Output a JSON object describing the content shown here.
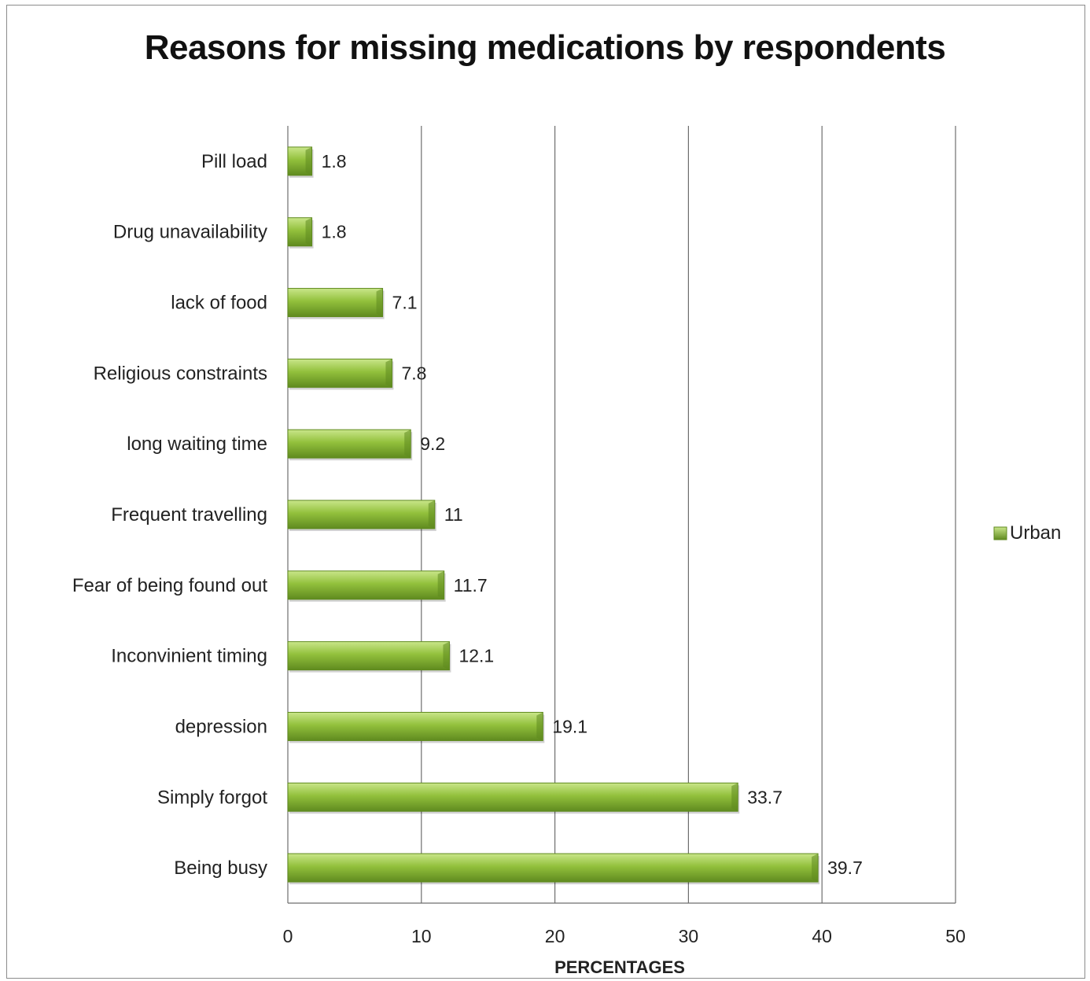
{
  "chart_data": {
    "type": "bar",
    "orientation": "horizontal",
    "title": "Reasons  for missing medications by respondents",
    "xlabel": "PERCENTAGES",
    "ylabel": "",
    "categories": [
      "Pill load",
      "Drug unavailability",
      "lack of food",
      "Religious constraints",
      "long waiting time",
      "Frequent travelling",
      "Fear of being found out",
      "Inconvinient timing",
      "depression",
      "Simply forgot",
      "Being busy"
    ],
    "series": [
      {
        "name": "Urban",
        "values": [
          1.8,
          1.8,
          7.1,
          7.8,
          9.2,
          11,
          11.7,
          12.1,
          19.1,
          33.7,
          39.7
        ],
        "value_labels": [
          "1.8",
          "1.8",
          "7.1",
          "7.8",
          "9.2",
          "11",
          "11.7",
          "12.1",
          "19.1",
          "33.7",
          "39.7"
        ],
        "color": "#8ab832"
      }
    ],
    "xlim": [
      0,
      50
    ],
    "xticks": [
      0,
      10,
      20,
      30,
      40,
      50
    ],
    "xtick_labels": [
      "0",
      "10",
      "20",
      "30",
      "40",
      "50"
    ],
    "grid": "vertical",
    "legend": {
      "position": "right",
      "entries": [
        "Urban"
      ]
    }
  },
  "colors": {
    "bar_light": "#c9e68a",
    "bar_mid": "#92c03c",
    "bar_dark": "#5f8a1f",
    "grid": "#6e6e6e",
    "frame": "#8c8c8c"
  }
}
